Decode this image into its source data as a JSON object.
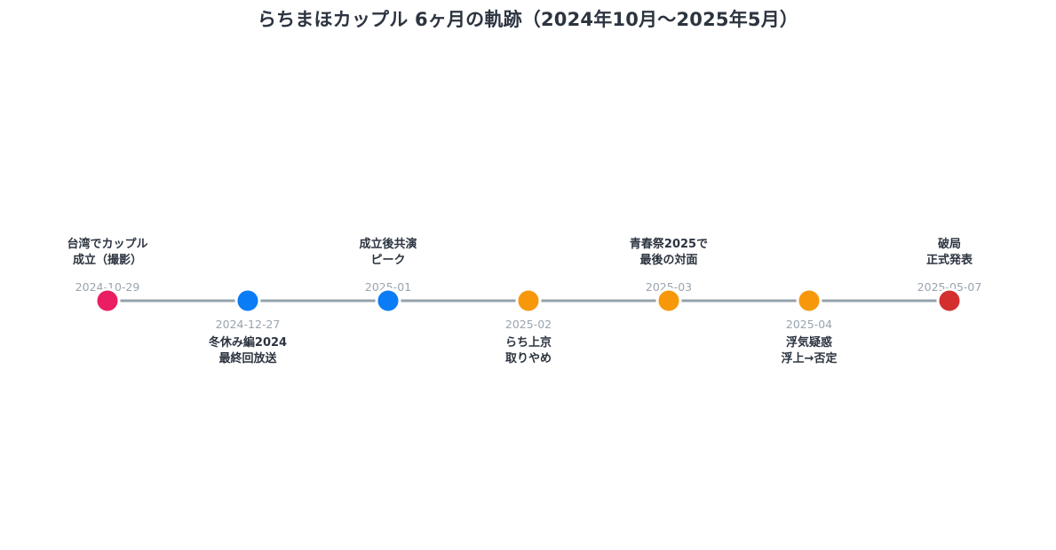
{
  "title": "らちまほカップル 6ヶ月の軌跡（2024年10月〜2025年5月）",
  "colors": {
    "line": "#95a3ab",
    "pink": "#e91e63",
    "blue": "#0a7cf5",
    "orange": "#f7980b",
    "red": "#d32f2f",
    "date": "#9aa4ae",
    "text": "#2c3440"
  },
  "events": [
    {
      "date": "2024-10-29",
      "lines": [
        "台湾でカップル",
        "成立（撮影）"
      ],
      "color": "#e91e63",
      "side": "top"
    },
    {
      "date": "2024-12-27",
      "lines": [
        "冬休み編2024",
        "最終回放送"
      ],
      "color": "#0a7cf5",
      "side": "bottom"
    },
    {
      "date": "2025-01",
      "lines": [
        "成立後共演",
        "ピーク"
      ],
      "color": "#0a7cf5",
      "side": "top"
    },
    {
      "date": "2025-02",
      "lines": [
        "らち上京",
        "取りやめ"
      ],
      "color": "#f7980b",
      "side": "bottom"
    },
    {
      "date": "2025-03",
      "lines": [
        "青春祭2025で",
        "最後の対面"
      ],
      "color": "#f7980b",
      "side": "top"
    },
    {
      "date": "2025-04",
      "lines": [
        "浮気疑惑",
        "浮上→否定"
      ],
      "color": "#f7980b",
      "side": "bottom"
    },
    {
      "date": "2025-05-07",
      "lines": [
        "破局",
        "正式発表"
      ],
      "color": "#d32f2f",
      "side": "top"
    }
  ]
}
